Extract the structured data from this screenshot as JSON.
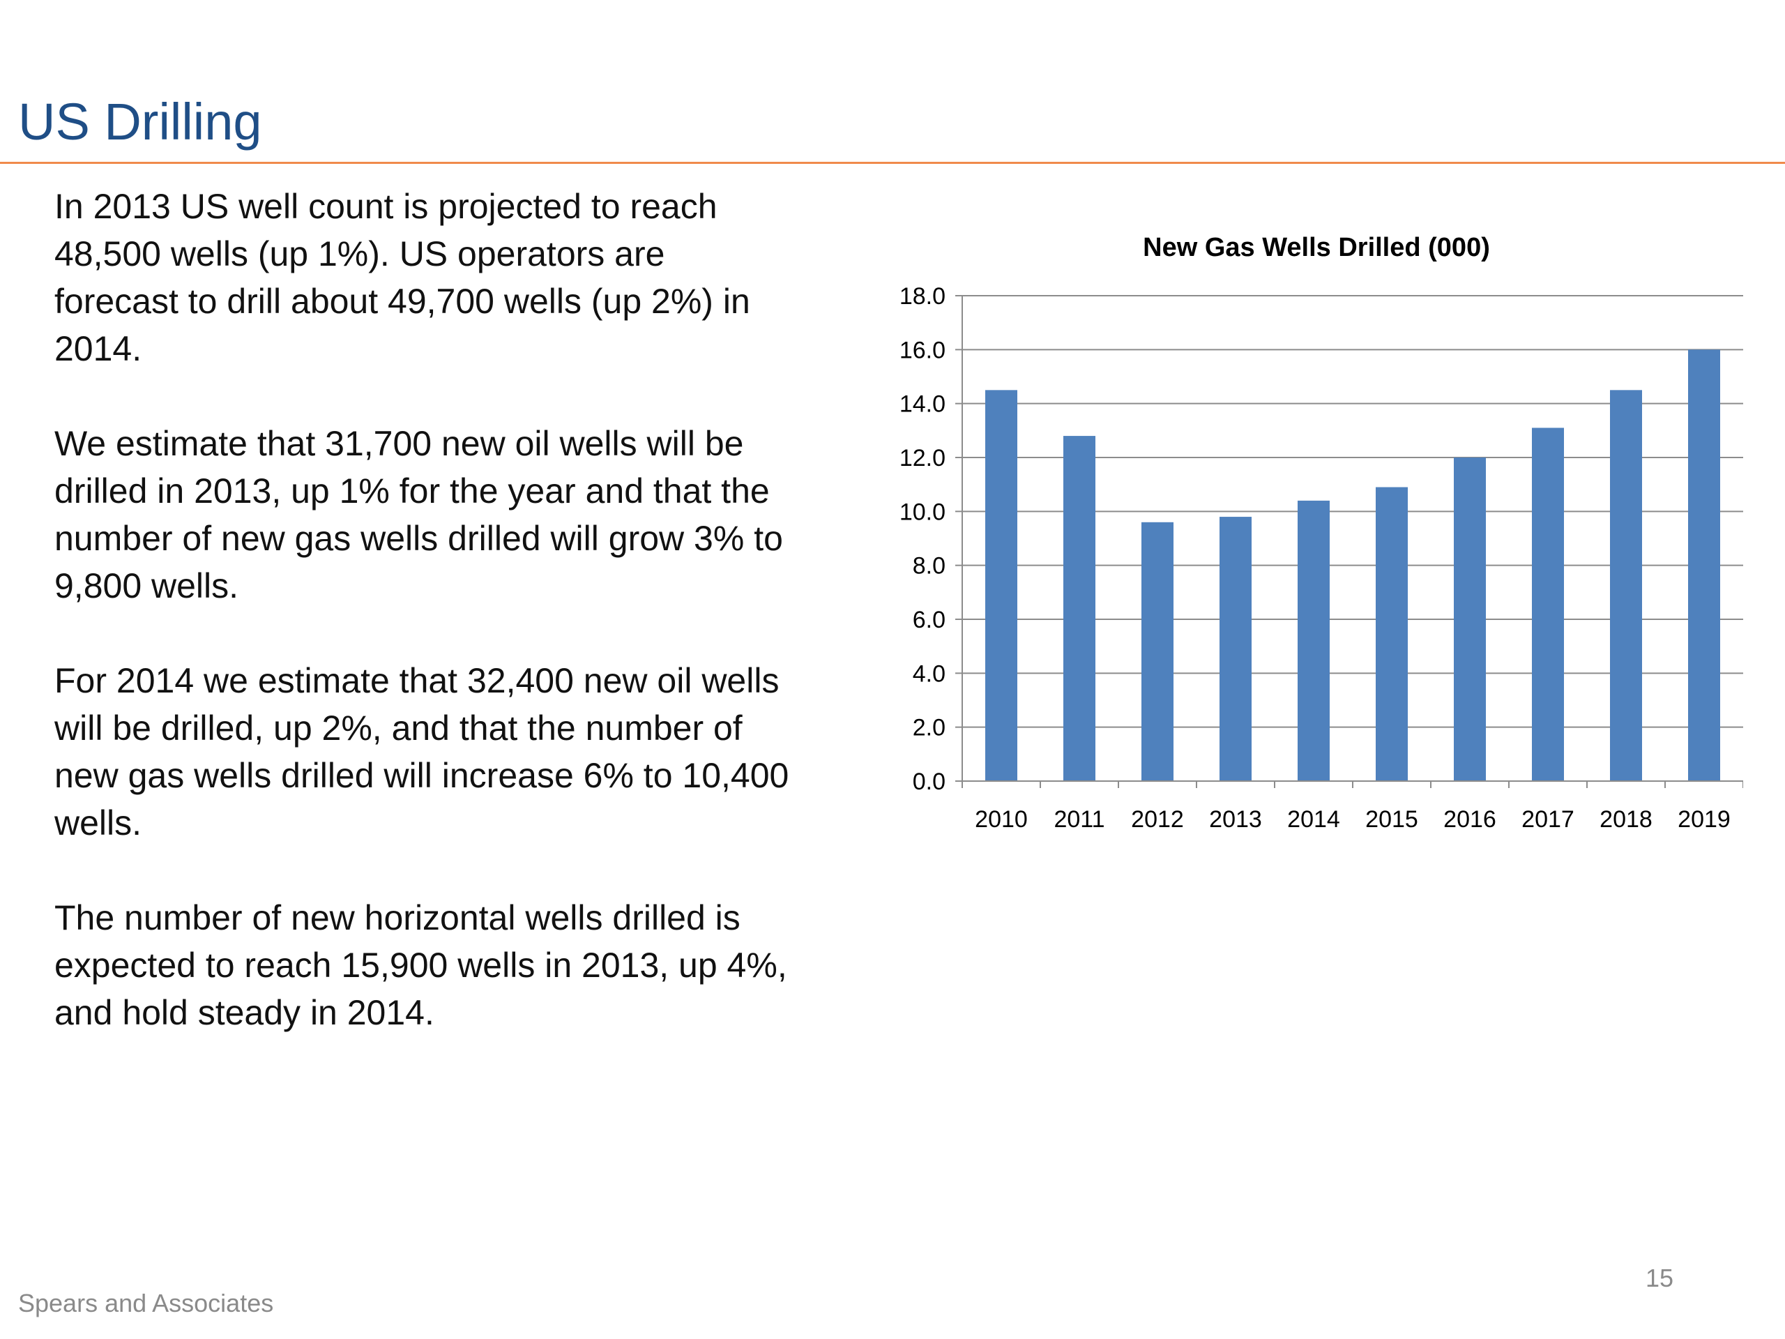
{
  "slide": {
    "title": "US Drilling",
    "paragraphs": [
      "In 2013 US well count is projected to reach 48,500 wells (up 1%).  US operators are forecast to drill about 49,700 wells (up 2%) in 2014.",
      "We estimate that 31,700 new oil wells will be drilled in 2013, up 1% for the year and that the number of new gas wells drilled will grow 3% to 9,800 wells.",
      "For 2014 we estimate that 32,400 new oil wells will be drilled, up 2%, and that the number of new gas wells drilled will increase 6% to 10,400 wells.",
      "The number of new horizontal wells drilled is expected to reach 15,900 wells in 2013, up 4%, and hold steady in 2014."
    ],
    "footer": "Spears and Associates",
    "page_number": "15"
  },
  "colors": {
    "title": "#1f4e86",
    "rule": "#f08a4b",
    "bar": "#4f81bd"
  },
  "chart_data": {
    "type": "bar",
    "title": "New Gas Wells Drilled (000)",
    "xlabel": "",
    "ylabel": "",
    "categories": [
      "2010",
      "2011",
      "2012",
      "2013",
      "2014",
      "2015",
      "2016",
      "2017",
      "2018",
      "2019"
    ],
    "values": [
      14.5,
      12.8,
      9.6,
      9.8,
      10.4,
      10.9,
      12.0,
      13.1,
      14.5,
      16.0
    ],
    "ylim": [
      0,
      18
    ],
    "yticks": [
      "0.0",
      "2.0",
      "4.0",
      "6.0",
      "8.0",
      "10.0",
      "12.0",
      "14.0",
      "16.0",
      "18.0"
    ],
    "grid": true,
    "legend": "none"
  }
}
